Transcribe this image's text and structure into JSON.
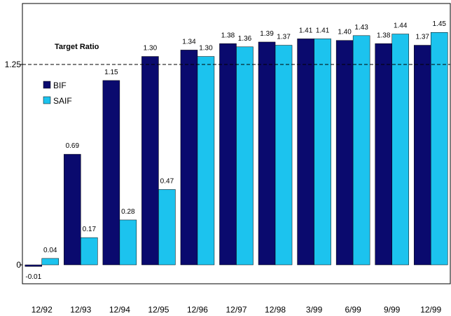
{
  "chart_data": {
    "type": "bar",
    "categories": [
      "12/92",
      "12/93",
      "12/94",
      "12/95",
      "12/96",
      "12/97",
      "12/98",
      "3/99",
      "6/99",
      "9/99",
      "12/99"
    ],
    "series": [
      {
        "name": "BIF",
        "color": "#0a0a6e",
        "values": [
          -0.01,
          0.69,
          1.15,
          1.3,
          1.34,
          1.38,
          1.39,
          1.41,
          1.4,
          1.38,
          1.37
        ]
      },
      {
        "name": "SAIF",
        "color": "#1cc3ee",
        "values": [
          0.04,
          0.17,
          0.28,
          0.47,
          1.3,
          1.36,
          1.37,
          1.41,
          1.43,
          1.44,
          1.45
        ]
      }
    ],
    "value_labels": {
      "BIF": [
        "-0.01",
        "0.69",
        "1.15",
        "1.30",
        "1.34",
        "1.38",
        "1.39",
        "1.41",
        "1.40",
        "1.38",
        "1.37"
      ],
      "SAIF": [
        "0.04",
        "0.17",
        "0.28",
        "0.47",
        "1.30",
        "1.36",
        "1.37",
        "1.41",
        "1.43",
        "1.44",
        "1.45"
      ]
    },
    "y_ticks": [
      {
        "value": 0,
        "label": "0"
      },
      {
        "value": 1.25,
        "label": "1.25"
      }
    ],
    "target": {
      "value": 1.25,
      "label": "Target Ratio",
      "style": "dashed"
    },
    "legend": {
      "position": "top-left"
    },
    "ylim": [
      -0.1,
      1.6
    ],
    "grid": false
  }
}
